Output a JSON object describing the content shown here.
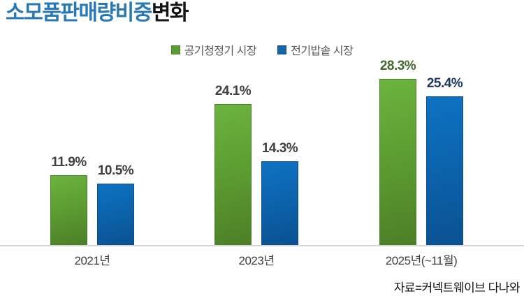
{
  "title": {
    "highlight": "소모품판매량비중",
    "rest": "변화"
  },
  "legend": [
    {
      "label": "공기청정기 시장",
      "color": "#5a9e32"
    },
    {
      "label": "전기밥솥 시장",
      "color": "#1565a8"
    }
  ],
  "source": "자료=커넥트웨이브 다나와",
  "colors": {
    "title_highlight": "#2878b8",
    "title_rest": "#141414",
    "green_bar_top": "#6cb33f",
    "green_bar_bottom": "#4d7f27",
    "blue_bar_top": "#0e72c2",
    "blue_bar_bottom": "#0a5191",
    "value_label_default": "#404040",
    "value_label_green_emphasis": "#44682c",
    "value_label_blue_emphasis": "#1f3864",
    "baseline": "#d9d9d9",
    "legend_text": "#595959"
  },
  "chart_data": {
    "type": "bar",
    "title": "소모품판매량비중변화",
    "categories": [
      "2021년",
      "2023년",
      "2025년(~11월)"
    ],
    "series": [
      {
        "name": "공기청정기 시장",
        "color": "#5d9e32",
        "values": [
          11.9,
          24.1,
          28.3
        ]
      },
      {
        "name": "전기밥솥 시장",
        "color": "#0c64ad",
        "values": [
          10.5,
          14.3,
          25.4
        ]
      }
    ],
    "value_labels": [
      [
        "11.9%",
        "24.1%",
        "28.3%"
      ],
      [
        "10.5%",
        "14.3%",
        "25.4%"
      ]
    ],
    "emphasized_category_index": 2,
    "value_suffix": "%",
    "xlabel": "",
    "ylabel": "",
    "ylim": [
      0,
      30
    ],
    "grid": false,
    "legend_position": "top"
  }
}
